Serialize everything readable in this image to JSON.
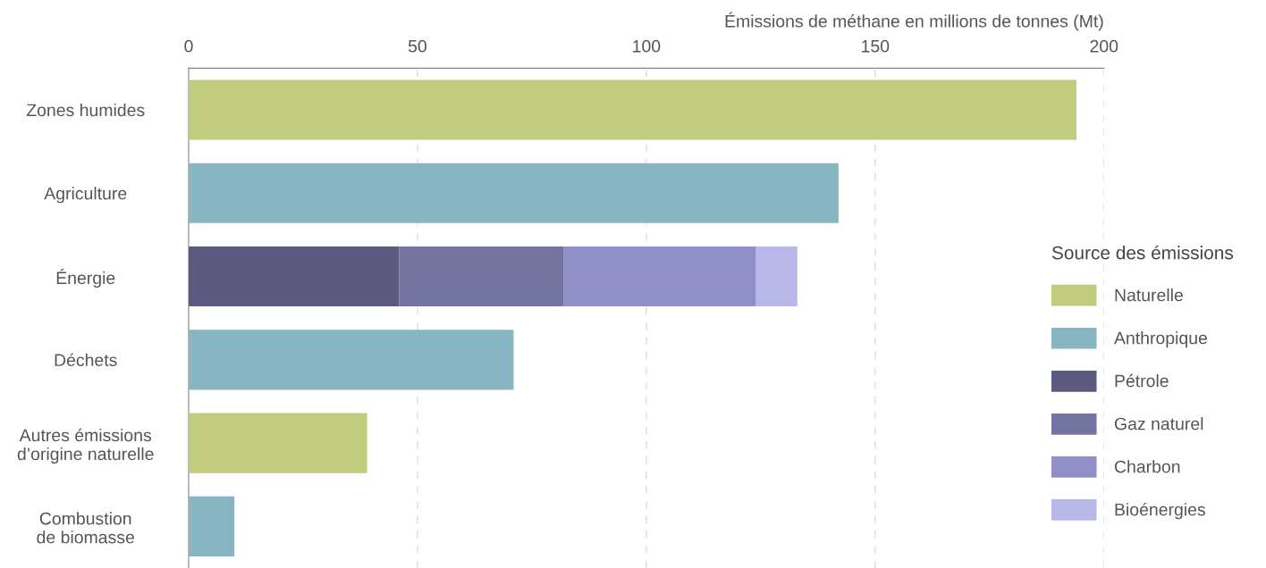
{
  "chart_data": {
    "type": "bar",
    "orientation": "horizontal",
    "stacked": true,
    "xlabel": "Émissions de méthane en millions de tonnes (Mt)",
    "legend_title": "Source des émissions",
    "categories": [
      "Zones humides",
      "Agriculture",
      "Énergie",
      "Déchets",
      "Autres émissions\nd’origine naturelle",
      "Combustion\nde biomasse"
    ],
    "series": [
      {
        "name": "Naturelle",
        "color": "#c1cc7d",
        "values": [
          194,
          null,
          null,
          null,
          39,
          null
        ]
      },
      {
        "name": "Anthropique",
        "color": "#87b6c2",
        "values": [
          null,
          142,
          null,
          71,
          null,
          10
        ]
      },
      {
        "name": "Pétrole",
        "color": "#5c5a7e",
        "values": [
          null,
          null,
          46,
          null,
          null,
          null
        ]
      },
      {
        "name": "Gaz naturel",
        "color": "#7573a0",
        "values": [
          null,
          null,
          36,
          null,
          null,
          null
        ]
      },
      {
        "name": "Charbon",
        "color": "#908fc8",
        "values": [
          null,
          null,
          42,
          null,
          null,
          null
        ]
      },
      {
        "name": "Bioénergies",
        "color": "#b9b8e8",
        "values": [
          null,
          null,
          9,
          null,
          null,
          null
        ]
      }
    ],
    "xlim": [
      0,
      200
    ],
    "xticks": [
      0,
      50,
      100,
      150,
      200
    ],
    "grid": "x",
    "legend": "right"
  }
}
